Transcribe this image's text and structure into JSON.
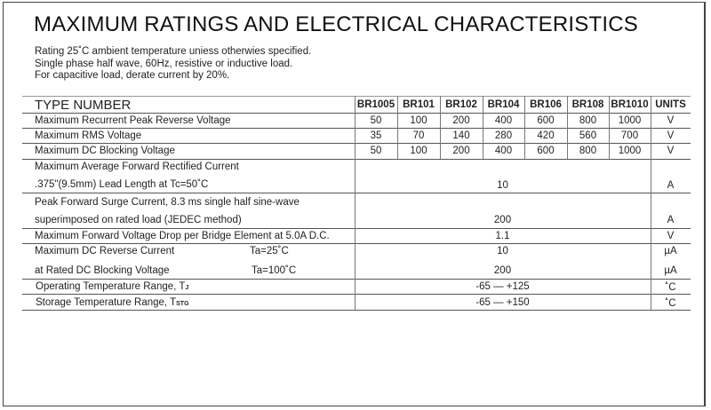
{
  "title": "MAXIMUM RATINGS AND ELECTRICAL CHARACTERISTICS",
  "notes": [
    "Rating 25˚C ambient temperature uniess otherwies specified.",
    "Single phase half wave, 60Hz, resistive or inductive load.",
    "For capacitive load, derate current by 20%."
  ],
  "table": {
    "type_label": "TYPE NUMBER",
    "columns": [
      "BR1005",
      "BR101",
      "BR102",
      "BR104",
      "BR106",
      "BR108",
      "BR1010"
    ],
    "units_label": "UNITS",
    "per_part_rows": [
      {
        "label": "Maximum Recurrent Peak Reverse Voltage",
        "values": [
          "50",
          "100",
          "200",
          "400",
          "600",
          "800",
          "1000"
        ],
        "unit": "V"
      },
      {
        "label": "Maximum RMS Voltage",
        "values": [
          "35",
          "70",
          "140",
          "280",
          "420",
          "560",
          "700"
        ],
        "unit": "V"
      },
      {
        "label": "Maximum DC Blocking Voltage",
        "values": [
          "50",
          "100",
          "200",
          "400",
          "600",
          "800",
          "1000"
        ],
        "unit": "V"
      }
    ],
    "forward_current": {
      "line1": "Maximum Average Forward Rectified Current",
      "line2": ".375\"(9.5mm) Lead Length at Tc=50˚C",
      "value": "10",
      "unit": "A"
    },
    "surge_current": {
      "line1": "Peak Forward Surge Current, 8.3 ms single half sine-wave",
      "line2": "superimposed on rated load (JEDEC method)",
      "value": "200",
      "unit": "A"
    },
    "forward_voltage": {
      "label": "Maximum Forward Voltage Drop per Bridge Element at 5.0A D.C.",
      "value": "1.1",
      "unit": "V"
    },
    "reverse_current": {
      "line1": "Maximum DC Reverse Current",
      "cond1": "Ta=25˚C",
      "line2": "at Rated DC Blocking Voltage",
      "cond2": "Ta=100˚C",
      "value1": "10",
      "value2": "200",
      "unit1": "µA",
      "unit2": "µA"
    },
    "operating_temp": {
      "label": "Operating Temperature Range, T",
      "sub": "J",
      "value": "-65 — +125",
      "unit": "˚C"
    },
    "storage_temp": {
      "label": "Storage Temperature Range, T",
      "sub": "STG",
      "value": "-65 — +150",
      "unit": "˚C"
    }
  }
}
